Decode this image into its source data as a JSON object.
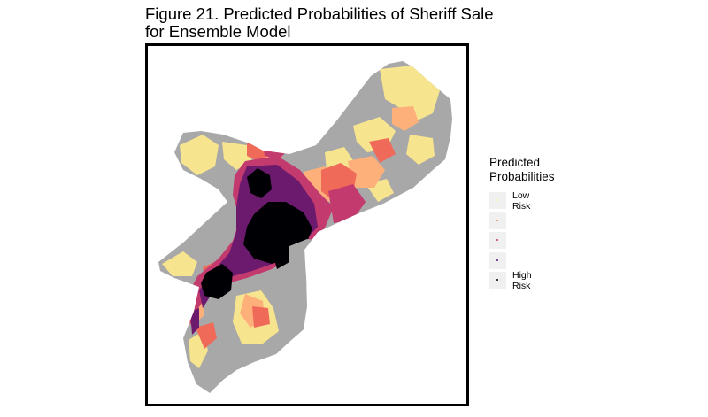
{
  "figure": {
    "title_line1": "Figure 21. Predicted Probabilities of Sheriff Sale",
    "title_line2": "for Ensemble Model"
  },
  "legend": {
    "title_line1": "Predicted",
    "title_line2": "Probabilities",
    "keys": [
      {
        "label_line1": "Low",
        "label_line2": "Risk",
        "color": "#fcfdbf"
      },
      {
        "label_line1": "",
        "label_line2": "",
        "color": "#fc8961"
      },
      {
        "label_line1": "",
        "label_line2": "",
        "color": "#b73779"
      },
      {
        "label_line1": "",
        "label_line2": "",
        "color": "#51127c"
      },
      {
        "label_line1": "High",
        "label_line2": "Risk",
        "color": "#000004"
      }
    ]
  },
  "map": {
    "base_color": "#a8a8a8",
    "risk_colors": {
      "low": "#f7e48e",
      "low_mid": "#fdb07a",
      "mid": "#f06a5a",
      "mid_high": "#c23a6e",
      "high": "#6c1a6e",
      "highest": "#000004"
    }
  }
}
